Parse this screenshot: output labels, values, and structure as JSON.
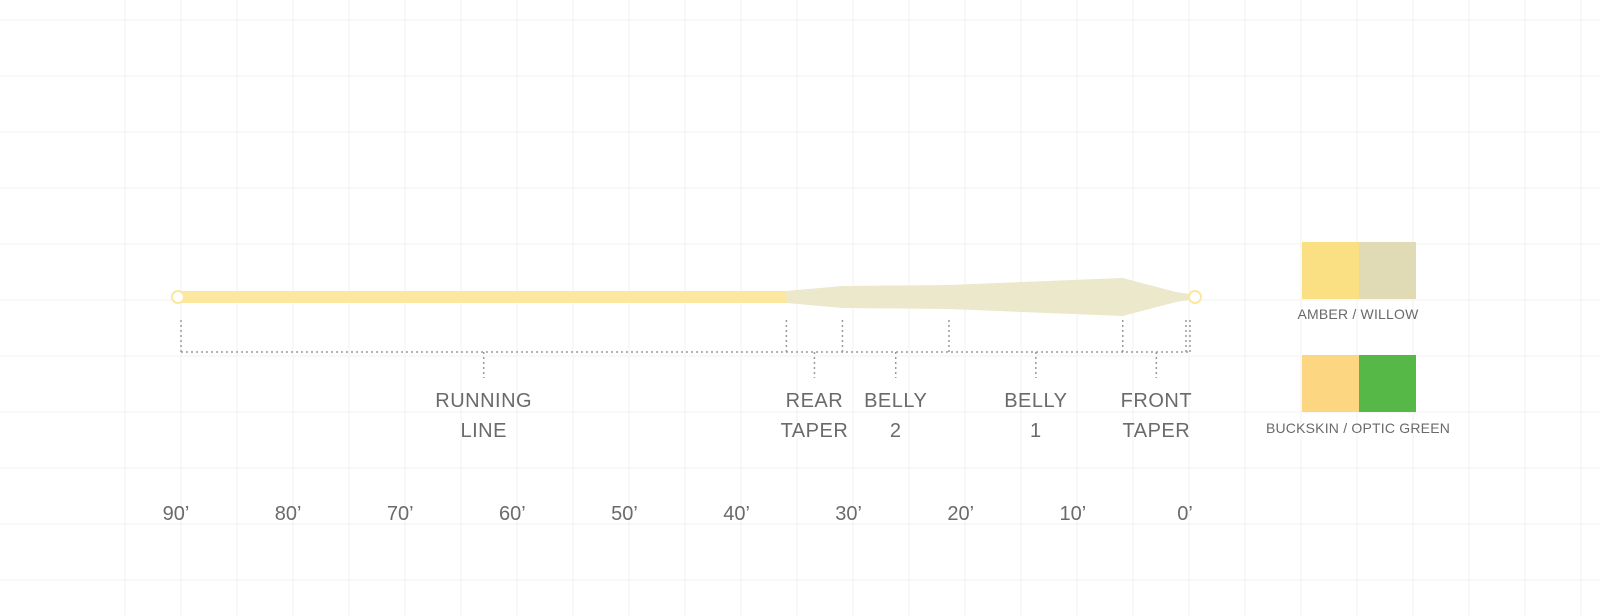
{
  "segments": [
    {
      "id": "running-line",
      "lines": [
        "RUNNING",
        "LINE"
      ],
      "start_ft": 90,
      "end_ft": 36
    },
    {
      "id": "rear-taper",
      "lines": [
        "REAR",
        "TAPER"
      ],
      "start_ft": 36,
      "end_ft": 31
    },
    {
      "id": "belly-2",
      "lines": [
        "BELLY",
        "2"
      ],
      "start_ft": 31,
      "end_ft": 21.5
    },
    {
      "id": "belly-1",
      "lines": [
        "BELLY",
        "1"
      ],
      "start_ft": 21.5,
      "end_ft": 6
    },
    {
      "id": "front-taper",
      "lines": [
        "FRONT",
        "TAPER"
      ],
      "start_ft": 6,
      "end_ft": 0
    }
  ],
  "axis": {
    "ticks": [
      "90’",
      "80’",
      "70’",
      "60’",
      "50’",
      "40’",
      "30’",
      "20’",
      "10’",
      "0’"
    ],
    "max_ft": 90
  },
  "color_options": [
    {
      "caption": "AMBER / WILLOW",
      "colors": [
        "#fbe083",
        "#e0dbb4"
      ]
    },
    {
      "caption": "BUCKSKIN / OPTIC GREEN",
      "colors": [
        "#fdd681",
        "#56b947"
      ]
    }
  ],
  "line_colors": {
    "running_line": "#fbe79d",
    "head": "#ebe8cc",
    "grid": "#f2f2f2",
    "bracket": "#9a9a9a"
  }
}
